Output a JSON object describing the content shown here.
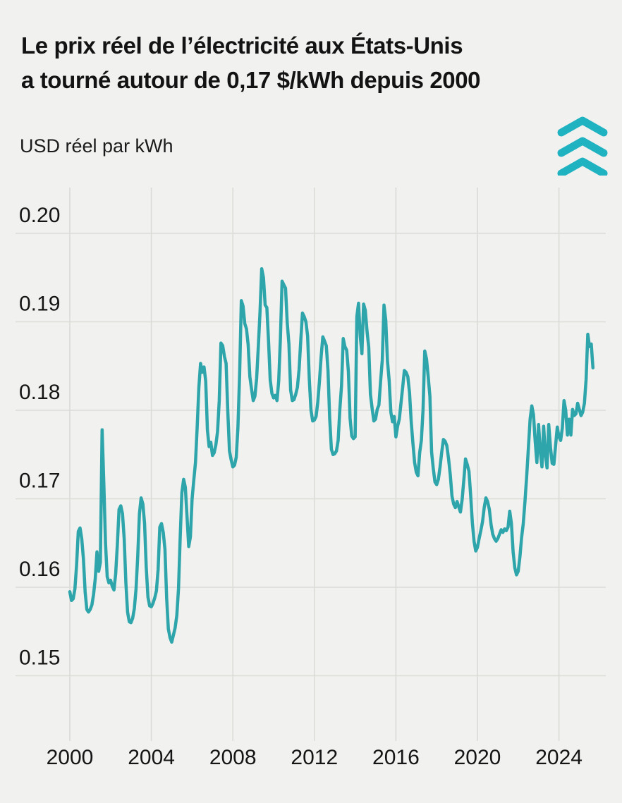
{
  "title": {
    "line1": "Le prix réel de l’électricité aux États-Unis",
    "line2": "a tourné autour de 0,17 $/kWh depuis 2000"
  },
  "subtitle": "USD réel par kWh",
  "logo": {
    "icon": "triple-chevron-up",
    "color": "#1fb2c1"
  },
  "colors": {
    "background": "#f1f1ef",
    "grid": "#dbdbd8",
    "text": "#151515",
    "line": "#2da5aa"
  },
  "chart_data": {
    "type": "line",
    "title": "Le prix réel de l’électricité aux États-Unis a tourné autour de 0,17 $/kWh depuis 2000",
    "ylabel": "USD réel par kWh",
    "xlabel": "",
    "unit": "USD/kWh (réel)",
    "frequency": "monthly",
    "x_start_year": 2000,
    "x_start_month": 1,
    "xlim": [
      1999.9,
      2026.1
    ],
    "ylim": [
      0.145,
      0.205
    ],
    "x_ticks": [
      2000,
      2004,
      2008,
      2012,
      2016,
      2020,
      2024
    ],
    "y_ticks": [
      0.2,
      0.19,
      0.18,
      0.17,
      0.16,
      0.15
    ],
    "grid": true,
    "legend_position": "none",
    "series": [
      {
        "name": "Prix réel de l'électricité aux États-Unis",
        "values": [
          0.1595,
          0.1585,
          0.1587,
          0.1598,
          0.1625,
          0.1663,
          0.1667,
          0.1655,
          0.1632,
          0.1595,
          0.1575,
          0.1572,
          0.1575,
          0.158,
          0.1592,
          0.161,
          0.164,
          0.1618,
          0.1628,
          0.1778,
          0.1718,
          0.165,
          0.1612,
          0.1605,
          0.1608,
          0.1601,
          0.1597,
          0.1615,
          0.1648,
          0.1688,
          0.1692,
          0.1683,
          0.1655,
          0.1605,
          0.1572,
          0.1561,
          0.156,
          0.1565,
          0.1576,
          0.1598,
          0.1635,
          0.1683,
          0.1701,
          0.1694,
          0.1672,
          0.1622,
          0.1589,
          0.1579,
          0.1578,
          0.1582,
          0.1588,
          0.1596,
          0.162,
          0.1668,
          0.1672,
          0.1662,
          0.1643,
          0.1588,
          0.1553,
          0.1543,
          0.1538,
          0.1546,
          0.1554,
          0.1568,
          0.1598,
          0.1656,
          0.1707,
          0.1722,
          0.1713,
          0.168,
          0.1646,
          0.1657,
          0.17,
          0.1721,
          0.1741,
          0.1781,
          0.1826,
          0.1853,
          0.1843,
          0.1849,
          0.1833,
          0.1778,
          0.1759,
          0.1764,
          0.1749,
          0.1752,
          0.1761,
          0.1776,
          0.1811,
          0.1876,
          0.1873,
          0.1861,
          0.1853,
          0.1799,
          0.1754,
          0.1744,
          0.1736,
          0.1738,
          0.1747,
          0.1781,
          0.1841,
          0.1924,
          0.1918,
          0.1898,
          0.1892,
          0.1874,
          0.1838,
          0.1824,
          0.1811,
          0.1816,
          0.1836,
          0.1872,
          0.1911,
          0.196,
          0.195,
          0.1919,
          0.1916,
          0.1878,
          0.1834,
          0.1819,
          0.1814,
          0.1817,
          0.1811,
          0.1833,
          0.1881,
          0.1946,
          0.1942,
          0.1938,
          0.1899,
          0.1875,
          0.1823,
          0.1811,
          0.1812,
          0.1818,
          0.1826,
          0.1846,
          0.1879,
          0.191,
          0.1906,
          0.19,
          0.1884,
          0.1835,
          0.18,
          0.1788,
          0.1789,
          0.1793,
          0.1809,
          0.1833,
          0.1861,
          0.1883,
          0.1878,
          0.1873,
          0.1845,
          0.1791,
          0.1756,
          0.175,
          0.1751,
          0.1754,
          0.1766,
          0.1801,
          0.1828,
          0.1881,
          0.1872,
          0.1868,
          0.1844,
          0.1791,
          0.1771,
          0.1768,
          0.177,
          0.1906,
          0.1921,
          0.1884,
          0.1864,
          0.192,
          0.1913,
          0.1889,
          0.1871,
          0.1818,
          0.1802,
          0.1788,
          0.179,
          0.1801,
          0.1806,
          0.1833,
          0.1857,
          0.1919,
          0.1902,
          0.1856,
          0.1834,
          0.1798,
          0.1787,
          0.1793,
          0.177,
          0.1782,
          0.179,
          0.1808,
          0.1826,
          0.1845,
          0.1843,
          0.1838,
          0.182,
          0.1787,
          0.1763,
          0.1741,
          0.173,
          0.1726,
          0.1752,
          0.1766,
          0.1801,
          0.1867,
          0.1858,
          0.1838,
          0.1816,
          0.1753,
          0.1734,
          0.1719,
          0.1716,
          0.1722,
          0.1736,
          0.1753,
          0.1767,
          0.1765,
          0.176,
          0.1745,
          0.1727,
          0.1703,
          0.1694,
          0.169,
          0.1697,
          0.1691,
          0.1685,
          0.1699,
          0.1721,
          0.1745,
          0.1739,
          0.1731,
          0.1704,
          0.1673,
          0.1652,
          0.1641,
          0.1645,
          0.1655,
          0.1664,
          0.1674,
          0.169,
          0.1701,
          0.1697,
          0.1688,
          0.1671,
          0.166,
          0.1655,
          0.1652,
          0.1655,
          0.166,
          0.1665,
          0.1662,
          0.1666,
          0.1664,
          0.1668,
          0.1686,
          0.1672,
          0.164,
          0.1622,
          0.1614,
          0.1618,
          0.1634,
          0.1656,
          0.1672,
          0.1697,
          0.1725,
          0.1758,
          0.179,
          0.1805,
          0.1795,
          0.1765,
          0.1741,
          0.1784,
          0.1754,
          0.1736,
          0.1782,
          0.175,
          0.1735,
          0.1784,
          0.1758,
          0.174,
          0.1739,
          0.176,
          0.1781,
          0.177,
          0.1766,
          0.178,
          0.1811,
          0.18,
          0.1772,
          0.179,
          0.1772,
          0.1801,
          0.1794,
          0.1796,
          0.1808,
          0.1801,
          0.1794,
          0.1798,
          0.1808,
          0.1835,
          0.1886,
          0.1872,
          0.1875,
          0.1848
        ]
      }
    ]
  }
}
